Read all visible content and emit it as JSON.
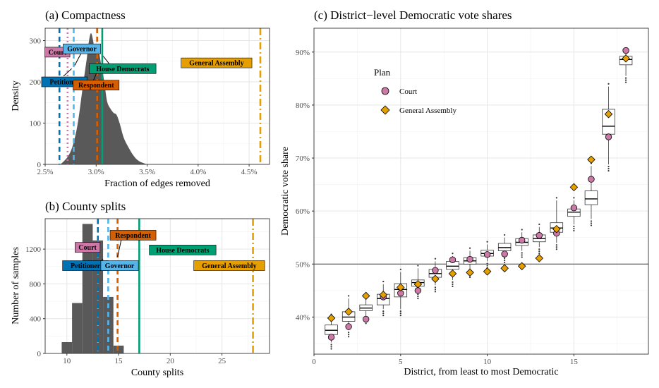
{
  "colors": {
    "Court": "#cc79a7",
    "Petitioner": "#0072b2",
    "Governor": "#56b4e9",
    "Respondent": "#d55e00",
    "House Democrats": "#009e73",
    "General Assembly": "#e69f00",
    "density_fill": "#595959"
  },
  "chart_data": [
    {
      "id": "a",
      "type": "area",
      "title": "(a) Compactness",
      "xlabel": "Fraction of edges removed",
      "ylabel": "Density",
      "xlim": [
        0.025,
        0.047
      ],
      "ylim": [
        0,
        330
      ],
      "x_ticks": [
        0.025,
        0.03,
        0.035,
        0.04,
        0.045
      ],
      "x_tick_labels": [
        "2.5%",
        "3.0%",
        "3.5%",
        "4.0%",
        "4.5%"
      ],
      "y_ticks": [
        0,
        100,
        200,
        300
      ],
      "y_tick_labels": [
        "0",
        "100",
        "200",
        "300"
      ],
      "density": {
        "x": [
          0.0265,
          0.0272,
          0.0277,
          0.0282,
          0.0287,
          0.0291,
          0.0293,
          0.0295,
          0.0297,
          0.0299,
          0.0301,
          0.0303,
          0.0305,
          0.0307,
          0.0309,
          0.0311,
          0.0314,
          0.0317,
          0.032,
          0.0323,
          0.0327,
          0.0332,
          0.0337,
          0.0342,
          0.035
        ],
        "y": [
          0,
          18,
          45,
          100,
          190,
          260,
          300,
          318,
          300,
          270,
          285,
          270,
          240,
          215,
          180,
          150,
          135,
          125,
          120,
          100,
          65,
          40,
          20,
          8,
          0
        ]
      },
      "plans": [
        {
          "name": "Court",
          "value": 0.0272,
          "line": "dotted",
          "label": "Court"
        },
        {
          "name": "Petitioner",
          "value": 0.0264,
          "line": "dashed",
          "label": "Petitioner"
        },
        {
          "name": "Governor",
          "value": 0.0278,
          "line": "dashed",
          "label": "Governor"
        },
        {
          "name": "Respondent",
          "value": 0.0301,
          "line": "dashed",
          "label": "Respondent"
        },
        {
          "name": "House Democrats",
          "value": 0.0306,
          "line": "solid",
          "label": "House Democrats"
        },
        {
          "name": "General Assembly",
          "value": 0.0461,
          "line": "dotdash",
          "label": "General Assembly"
        }
      ]
    },
    {
      "id": "b",
      "type": "bar",
      "title": "(b) County splits",
      "xlabel": "County splits",
      "ylabel": "Number of samples",
      "xlim": [
        7.9,
        29.6
      ],
      "ylim": [
        0,
        1550
      ],
      "x_ticks": [
        10,
        15,
        20,
        25
      ],
      "x_tick_labels": [
        "10",
        "15",
        "20",
        "25"
      ],
      "y_ticks": [
        0,
        400,
        800,
        1200
      ],
      "y_tick_labels": [
        "0",
        "400",
        "800",
        "1200"
      ],
      "categories": [
        10,
        11,
        12,
        13,
        14,
        15
      ],
      "values": [
        130,
        580,
        1490,
        1300,
        650,
        90
      ],
      "plans": [
        {
          "name": "Court",
          "value": 13.0,
          "line": "dotted",
          "label": "Court"
        },
        {
          "name": "Petitioner",
          "value": 13.0,
          "line": "dashed",
          "label": "Petitioner"
        },
        {
          "name": "Governor",
          "value": 14.0,
          "line": "dashed",
          "label": "Governor"
        },
        {
          "name": "Respondent",
          "value": 14.9,
          "line": "dashed",
          "label": "Respondent"
        },
        {
          "name": "House Democrats",
          "value": 17.0,
          "line": "solid",
          "label": "House Democrats"
        },
        {
          "name": "General Assembly",
          "value": 28.0,
          "line": "dotdash",
          "label": "General Assembly"
        }
      ]
    },
    {
      "id": "c",
      "type": "box",
      "title": "(c) District−level Democratic vote shares",
      "xlabel": "District, from least to most Democratic",
      "ylabel": "Democratic vote share",
      "xlim": [
        0,
        19.3
      ],
      "ylim": [
        0.33,
        0.945
      ],
      "x_ticks": [
        0,
        5,
        10,
        15
      ],
      "x_tick_labels": [
        "0",
        "5",
        "10",
        "15"
      ],
      "y_ticks": [
        0.4,
        0.5,
        0.6,
        0.7,
        0.8,
        0.9
      ],
      "y_tick_labels": [
        "40%",
        "50%",
        "60%",
        "70%",
        "80%",
        "90%"
      ],
      "hline": 0.5,
      "legend": {
        "title": "Plan",
        "entries": [
          "Court",
          "General Assembly"
        ],
        "position": "top-left"
      },
      "boxes": [
        {
          "d": 1,
          "q1": 0.367,
          "med": 0.375,
          "q3": 0.385,
          "lo": 0.352,
          "hi": 0.4
        },
        {
          "d": 2,
          "q1": 0.392,
          "med": 0.4,
          "q3": 0.41,
          "lo": 0.375,
          "hi": 0.435
        },
        {
          "d": 3,
          "q1": 0.412,
          "med": 0.417,
          "q3": 0.423,
          "lo": 0.4,
          "hi": 0.437
        },
        {
          "d": 4,
          "q1": 0.423,
          "med": 0.435,
          "q3": 0.443,
          "lo": 0.415,
          "hi": 0.462
        },
        {
          "d": 5,
          "q1": 0.438,
          "med": 0.452,
          "q3": 0.463,
          "lo": 0.415,
          "hi": 0.485
        },
        {
          "d": 6,
          "q1": 0.458,
          "med": 0.465,
          "q3": 0.47,
          "lo": 0.447,
          "hi": 0.492
        },
        {
          "d": 7,
          "q1": 0.475,
          "med": 0.482,
          "q3": 0.49,
          "lo": 0.46,
          "hi": 0.505
        },
        {
          "d": 8,
          "q1": 0.49,
          "med": 0.496,
          "q3": 0.505,
          "lo": 0.47,
          "hi": 0.515
        },
        {
          "d": 9,
          "q1": 0.5,
          "med": 0.506,
          "q3": 0.512,
          "lo": 0.487,
          "hi": 0.525
        },
        {
          "d": 10,
          "q1": 0.515,
          "med": 0.52,
          "q3": 0.526,
          "lo": 0.505,
          "hi": 0.537
        },
        {
          "d": 11,
          "q1": 0.525,
          "med": 0.531,
          "q3": 0.539,
          "lo": 0.515,
          "hi": 0.55
        },
        {
          "d": 12,
          "q1": 0.535,
          "med": 0.541,
          "q3": 0.548,
          "lo": 0.525,
          "hi": 0.56
        },
        {
          "d": 13,
          "q1": 0.542,
          "med": 0.548,
          "q3": 0.555,
          "lo": 0.532,
          "hi": 0.57
        },
        {
          "d": 14,
          "q1": 0.56,
          "med": 0.568,
          "q3": 0.578,
          "lo": 0.54,
          "hi": 0.62
        },
        {
          "d": 15,
          "q1": 0.59,
          "med": 0.598,
          "q3": 0.604,
          "lo": 0.575,
          "hi": 0.62
        },
        {
          "d": 16,
          "q1": 0.612,
          "med": 0.623,
          "q3": 0.638,
          "lo": 0.585,
          "hi": 0.685
        },
        {
          "d": 17,
          "q1": 0.745,
          "med": 0.76,
          "q3": 0.792,
          "lo": 0.688,
          "hi": 0.835
        },
        {
          "d": 18,
          "q1": 0.876,
          "med": 0.886,
          "q3": 0.892,
          "lo": 0.855,
          "hi": 0.9
        }
      ],
      "court": [
        0.362,
        0.382,
        0.396,
        0.438,
        0.445,
        0.45,
        0.488,
        0.508,
        0.509,
        0.518,
        0.519,
        0.545,
        0.554,
        0.558,
        0.606,
        0.66,
        0.74,
        0.903
      ],
      "general_assembly": [
        0.398,
        0.41,
        0.44,
        0.442,
        0.456,
        0.462,
        0.472,
        0.482,
        0.484,
        0.486,
        0.492,
        0.496,
        0.511,
        0.566,
        0.645,
        0.697,
        0.783,
        0.888
      ]
    }
  ]
}
